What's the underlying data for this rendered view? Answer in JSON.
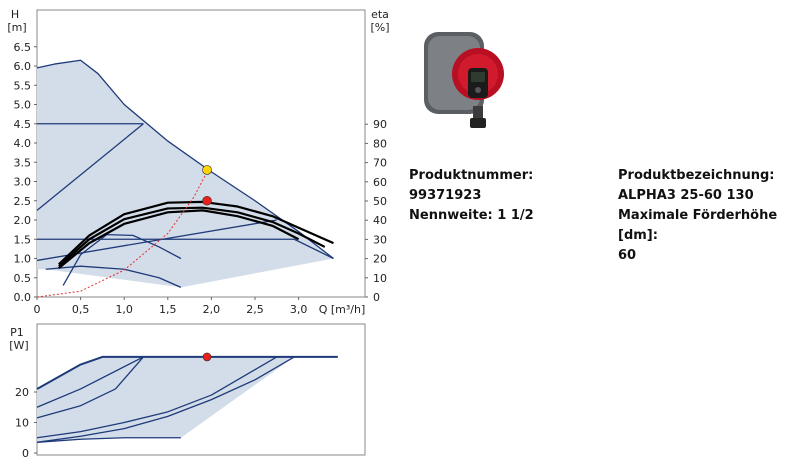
{
  "product": {
    "number_label": "Produktnummer:",
    "number": "99371923",
    "nominal_label": "Nennweite:",
    "nominal": "1 1/2",
    "designation_label": "Produktbezeichnung:",
    "designation": "ALPHA3 25-60 130",
    "max_head_label": "Maximale Förderhöhe [dm]:",
    "max_head": "60",
    "photo_icon": "circulator-pump-photo",
    "brand_color": "#c8102e"
  },
  "chart_data": [
    {
      "type": "line",
      "xlabel": "Q [m³/h]",
      "xlim": [
        0,
        3.5
      ],
      "x_ticks": [
        "0",
        "0,5",
        "1,0",
        "1,5",
        "2,0",
        "2,5",
        "3,0"
      ],
      "y_left": {
        "label_line1": "H",
        "label_line2": "[m]",
        "ylim": [
          0,
          6.5
        ],
        "ticks": [
          "0.0",
          "0.5",
          "1.0",
          "1.5",
          "2.0",
          "2.5",
          "3.0",
          "3.5",
          "4.0",
          "4.5",
          "5.0",
          "5.5",
          "6.0",
          "6.5"
        ]
      },
      "y_right": {
        "label_line1": "eta",
        "label_line2": "[%]",
        "ylim": [
          0,
          130
        ],
        "ticks": [
          "0",
          "10",
          "20",
          "30",
          "40",
          "50",
          "60",
          "70",
          "80",
          "90"
        ]
      },
      "grid": false,
      "series": [
        {
          "role": "max-head-curve",
          "color": "#1f3a7a",
          "x": [
            0,
            0.2,
            0.5,
            0.7,
            1.0,
            1.5,
            2.0,
            2.5,
            3.0,
            3.4
          ],
          "y": [
            5.95,
            6.05,
            6.15,
            5.8,
            5.0,
            4.05,
            3.25,
            2.5,
            1.7,
            1.0
          ]
        },
        {
          "role": "constant-pressure-4.5",
          "color": "#1f3a7a",
          "x": [
            0,
            1.22
          ],
          "y": [
            4.5,
            4.5
          ]
        },
        {
          "role": "constant-pressure-1.5",
          "color": "#1f3a7a",
          "x": [
            0,
            2.95,
            3.4
          ],
          "y": [
            1.5,
            1.5,
            1.0
          ]
        },
        {
          "role": "proportional-line-1",
          "color": "#1f3a7a",
          "x": [
            0,
            1.22
          ],
          "y": [
            2.25,
            4.5
          ]
        },
        {
          "role": "proportional-line-2",
          "color": "#1f3a7a",
          "x": [
            0,
            2.75
          ],
          "y": [
            0.95,
            2.0
          ]
        },
        {
          "role": "low-curve-1",
          "color": "#1f3a7a",
          "x": [
            0.1,
            0.5,
            1.0,
            1.4,
            1.65
          ],
          "y": [
            0.72,
            0.8,
            0.72,
            0.5,
            0.25
          ]
        },
        {
          "role": "low-curve-2",
          "color": "#1f3a7a",
          "x": [
            0.3,
            0.5,
            0.8,
            1.1,
            1.4,
            1.65
          ],
          "y": [
            0.3,
            1.1,
            1.62,
            1.6,
            1.3,
            1.0
          ]
        },
        {
          "role": "autoadapt-band-upper",
          "color": "#000000",
          "x": [
            0.25,
            0.6,
            1.0,
            1.5,
            1.9,
            2.3,
            2.7,
            3.0,
            3.4
          ],
          "y": [
            0.85,
            1.6,
            2.15,
            2.45,
            2.47,
            2.35,
            2.1,
            1.8,
            1.4
          ]
        },
        {
          "role": "autoadapt-band-mid",
          "color": "#000000",
          "x": [
            0.25,
            0.6,
            1.0,
            1.5,
            1.9,
            2.3,
            2.7,
            3.0,
            3.3
          ],
          "y": [
            0.8,
            1.5,
            2.02,
            2.3,
            2.32,
            2.2,
            1.95,
            1.65,
            1.3
          ]
        },
        {
          "role": "autoadapt-band-lower",
          "color": "#000000",
          "x": [
            0.25,
            0.6,
            1.0,
            1.5,
            1.9,
            2.3,
            2.7,
            3.0
          ],
          "y": [
            0.75,
            1.4,
            1.9,
            2.2,
            2.25,
            2.1,
            1.85,
            1.5
          ]
        },
        {
          "role": "system-curve",
          "color": "#e03030",
          "x": [
            0,
            0.5,
            1.0,
            1.5,
            1.8,
            1.95
          ],
          "y": [
            0,
            0.15,
            0.7,
            1.65,
            2.6,
            3.25
          ]
        }
      ],
      "envelope": {
        "x": [
          0,
          0.2,
          0.5,
          0.7,
          1.0,
          1.5,
          2.0,
          2.5,
          3.0,
          3.4,
          1.65,
          0.1,
          0
        ],
        "y": [
          5.95,
          6.05,
          6.15,
          5.8,
          5.0,
          4.05,
          3.25,
          2.5,
          1.7,
          1.0,
          0.25,
          0.72,
          0.72
        ],
        "color": "#d3dde9"
      },
      "points": [
        {
          "role": "duty-point-max-curve",
          "x": 1.95,
          "y": 3.3,
          "color": "#ffd400"
        },
        {
          "role": "duty-point",
          "x": 1.95,
          "y": 2.5,
          "color": "#e8201c"
        }
      ]
    },
    {
      "type": "line",
      "xlim": [
        0,
        3.5
      ],
      "y_left": {
        "label_line1": "P1",
        "label_line2": "[W]",
        "ylim": [
          0,
          34
        ],
        "ticks": [
          "0",
          "10",
          "20"
        ]
      },
      "grid": false,
      "series": [
        {
          "role": "power-max",
          "color": "#1f3a7a",
          "x": [
            0,
            0.5,
            0.75,
            3.45
          ],
          "y": [
            21,
            29,
            31.5,
            31.5
          ]
        },
        {
          "role": "power-curve-1",
          "color": "#1f3a7a",
          "x": [
            0,
            0.5,
            1.22
          ],
          "y": [
            15,
            21,
            31.5
          ]
        },
        {
          "role": "power-curve-2",
          "color": "#1f3a7a",
          "x": [
            0,
            0.5,
            0.9,
            1.22
          ],
          "y": [
            11.5,
            15.5,
            21,
            31.5
          ]
        },
        {
          "role": "power-curve-3",
          "color": "#1f3a7a",
          "x": [
            0,
            0.5,
            1.0,
            1.5,
            2.0,
            2.3,
            2.75
          ],
          "y": [
            5,
            7,
            10,
            13.5,
            19,
            24,
            31.5
          ]
        },
        {
          "role": "power-curve-4",
          "color": "#1f3a7a",
          "x": [
            0,
            0.5,
            1.0,
            1.5,
            2.0,
            2.5,
            2.95
          ],
          "y": [
            3.5,
            5.5,
            8,
            12,
            17.5,
            24,
            31.5
          ]
        },
        {
          "role": "power-low",
          "color": "#1f3a7a",
          "x": [
            0,
            0.5,
            1.0,
            1.65
          ],
          "y": [
            3.5,
            4.5,
            5.0,
            5.0
          ]
        }
      ],
      "envelope": {
        "x": [
          0,
          0.5,
          0.75,
          3.45,
          2.95,
          1.65,
          1.0,
          0.5,
          0
        ],
        "y": [
          21,
          29,
          31.5,
          31.5,
          31.5,
          5.0,
          5.0,
          4.5,
          3.5
        ],
        "color": "#d3dde9"
      },
      "points": [
        {
          "role": "duty-point-power",
          "x": 1.95,
          "y": 31.5,
          "color": "#e8201c"
        }
      ]
    }
  ]
}
